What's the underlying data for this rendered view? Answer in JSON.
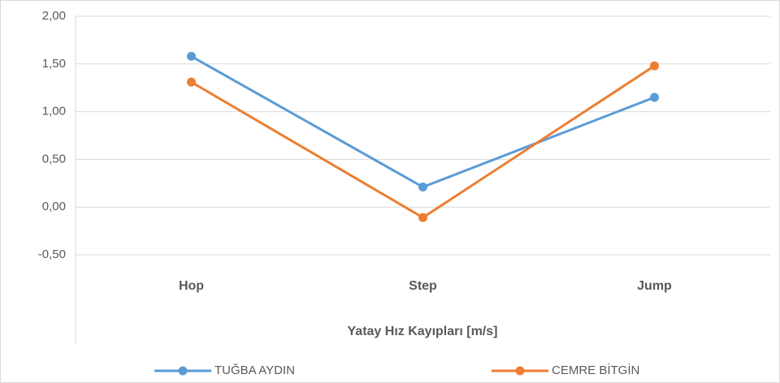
{
  "chart_data": {
    "type": "line",
    "categories": [
      "Hop",
      "Step",
      "Jump"
    ],
    "x_label": "Yatay Hız Kayıpları  [m/s]",
    "series": [
      {
        "name": "TUĞBA AYDIN",
        "color": "#5b9bd5",
        "values": [
          1.58,
          0.21,
          1.15
        ]
      },
      {
        "name": "CEMRE BİTGİN",
        "color": "#ed7d31",
        "values": [
          1.31,
          -0.11,
          1.48
        ]
      }
    ],
    "ylim": [
      -0.5,
      2
    ],
    "yticks": [
      {
        "value": -0.5,
        "label": "-0,50"
      },
      {
        "value": 0,
        "label": "0,00"
      },
      {
        "value": 0.5,
        "label": "0,50"
      },
      {
        "value": 1,
        "label": "1,00"
      },
      {
        "value": 1.5,
        "label": "1,50"
      },
      {
        "value": 2,
        "label": "2,00"
      }
    ],
    "grid": true,
    "legend": "bottom"
  }
}
